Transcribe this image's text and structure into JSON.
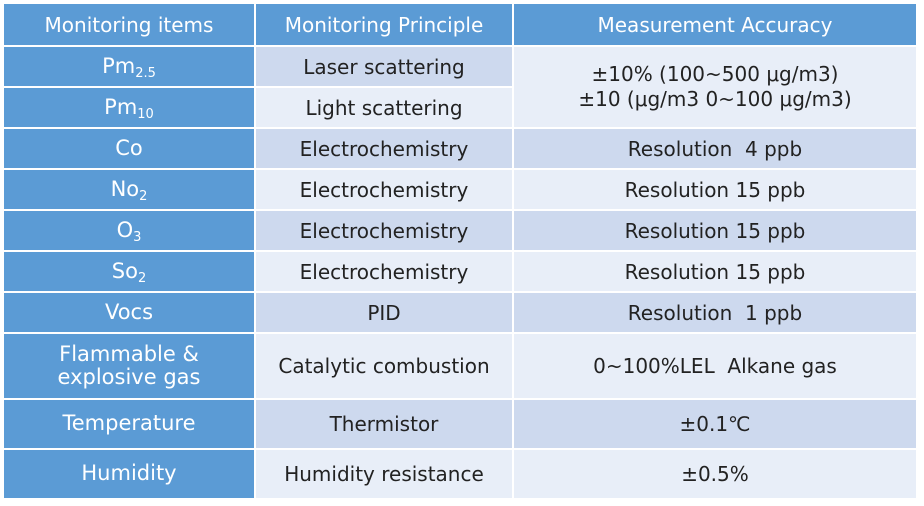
{
  "headers": {
    "item": "Monitoring items",
    "principle": "Monitoring Principle",
    "accuracy": "Measurement Accuracy"
  },
  "rows": [
    {
      "item": "Pm",
      "item_sub": "2.5",
      "principle": "Laser scattering"
    },
    {
      "item": "Pm",
      "item_sub": "10",
      "principle": "Light scattering"
    },
    {
      "item": "Co",
      "item_sub": "",
      "principle": "Electrochemistry",
      "accuracy": "Resolution  4 ppb"
    },
    {
      "item": "No",
      "item_sub": "2",
      "principle": "Electrochemistry",
      "accuracy": "Resolution 15 ppb"
    },
    {
      "item": "O",
      "item_sub": "3",
      "principle": "Electrochemistry",
      "accuracy": "Resolution 15 ppb"
    },
    {
      "item": "So",
      "item_sub": "2",
      "principle": "Electrochemistry",
      "accuracy": "Resolution 15 ppb"
    },
    {
      "item": "Vocs",
      "item_sub": "",
      "principle": "PID",
      "accuracy": "Resolution  1 ppb"
    },
    {
      "item": "Flammable & explosive gas",
      "item_sub": "",
      "principle": "Catalytic combustion",
      "accuracy": "0~100%LEL  Alkane gas"
    },
    {
      "item": "Temperature",
      "item_sub": "",
      "principle": "Thermistor",
      "accuracy": "±0.1℃"
    },
    {
      "item": "Humidity",
      "item_sub": "",
      "principle": "Humidity resistance",
      "accuracy": "±0.5%"
    }
  ],
  "pm_accuracy": {
    "line1": "±10% (100~500 μg/m3)",
    "line2": "±10 (μg/m3 0~100 μg/m3)"
  },
  "colors": {
    "header_bg": "#5b9bd5",
    "item_bg": "#5b9bd5",
    "band_dark": "#cdd9ee",
    "band_light": "#e8eef8"
  }
}
